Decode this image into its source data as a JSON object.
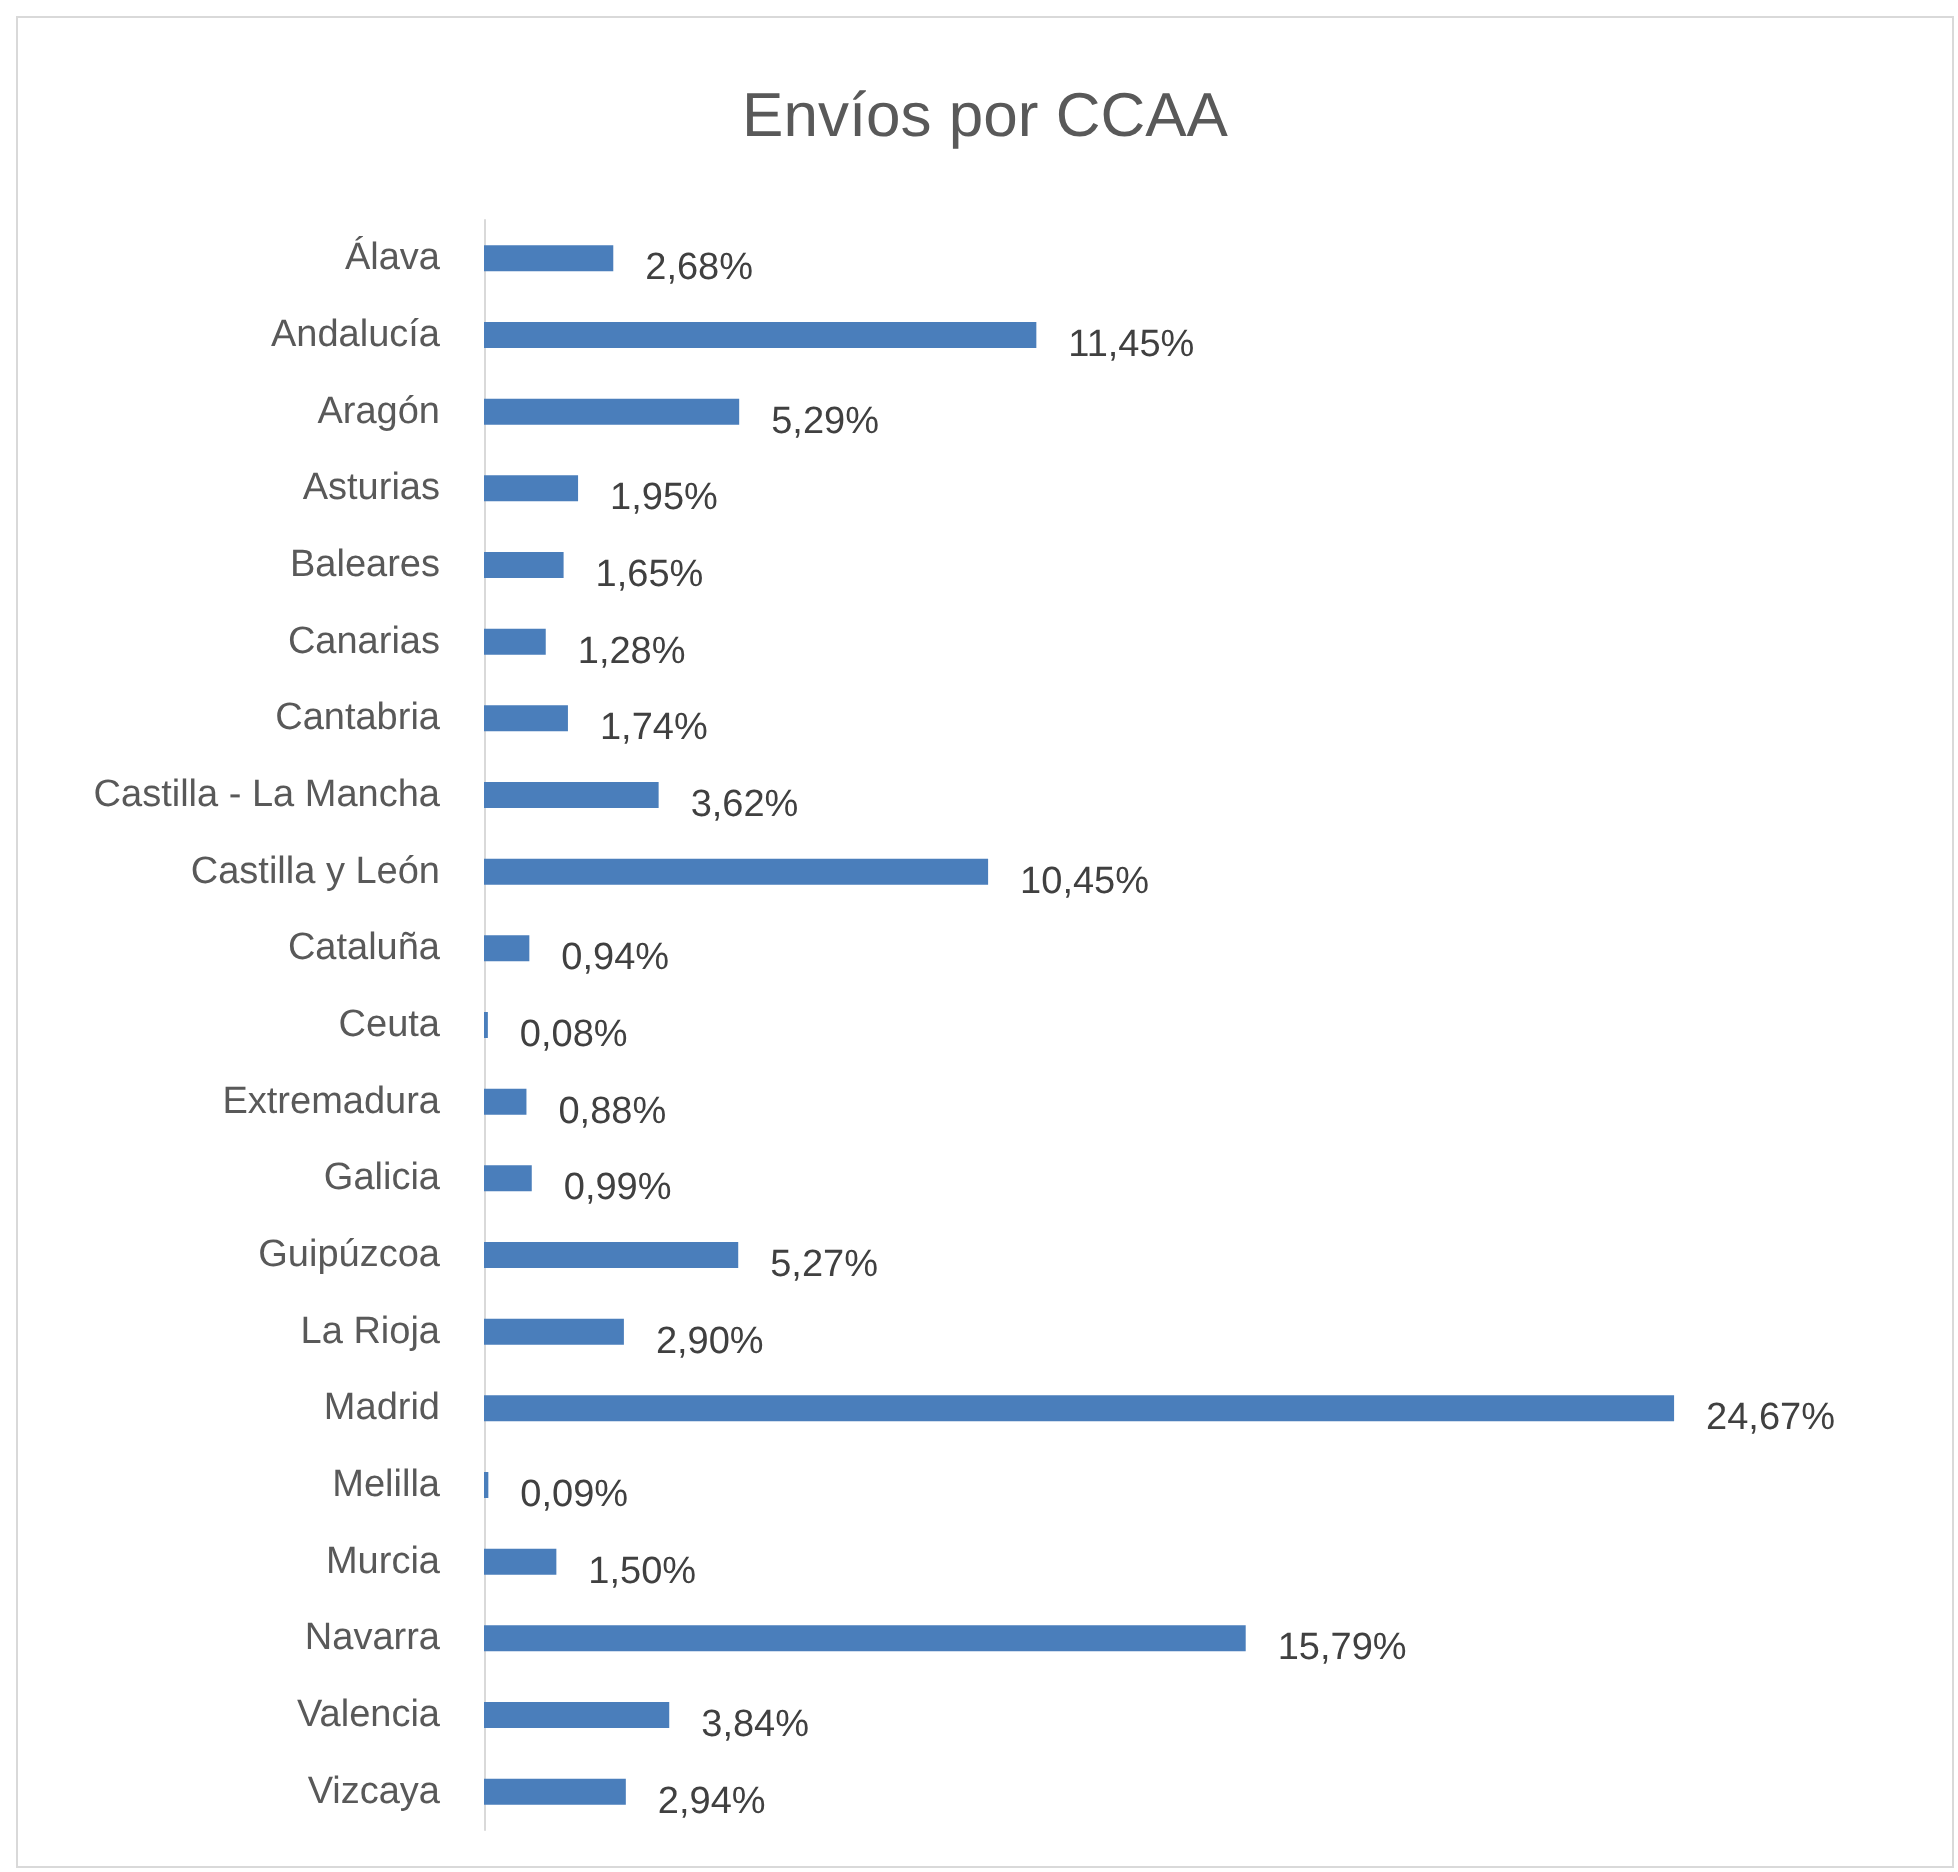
{
  "chart_data": {
    "type": "bar",
    "orientation": "horizontal",
    "title": "Envíos por CCAA",
    "categories": [
      "Álava",
      "Andalucía",
      "Aragón",
      "Asturias",
      "Baleares",
      "Canarias",
      "Cantabria",
      "Castilla - La Mancha",
      "Castilla y León",
      "Cataluña",
      "Ceuta",
      "Extremadura",
      "Galicia",
      "Guipúzcoa",
      "La Rioja",
      "Madrid",
      "Melilla",
      "Murcia",
      "Navarra",
      "Valencia",
      "Vizcaya"
    ],
    "values": [
      2.68,
      11.45,
      5.29,
      1.95,
      1.65,
      1.28,
      1.74,
      3.62,
      10.45,
      0.94,
      0.08,
      0.88,
      0.99,
      5.27,
      2.9,
      24.67,
      0.09,
      1.5,
      15.79,
      3.84,
      2.94
    ],
    "value_labels": [
      "2,68%",
      "11,45%",
      "5,29%",
      "1,95%",
      "1,65%",
      "1,28%",
      "1,74%",
      "3,62%",
      "10,45%",
      "0,94%",
      "0,08%",
      "0,88%",
      "0,99%",
      "5,27%",
      "2,90%",
      "24,67%",
      "0,09%",
      "1,50%",
      "15,79%",
      "3,84%",
      "2,94%"
    ],
    "color": "#4a7ebb",
    "tick_labels": "y"
  }
}
